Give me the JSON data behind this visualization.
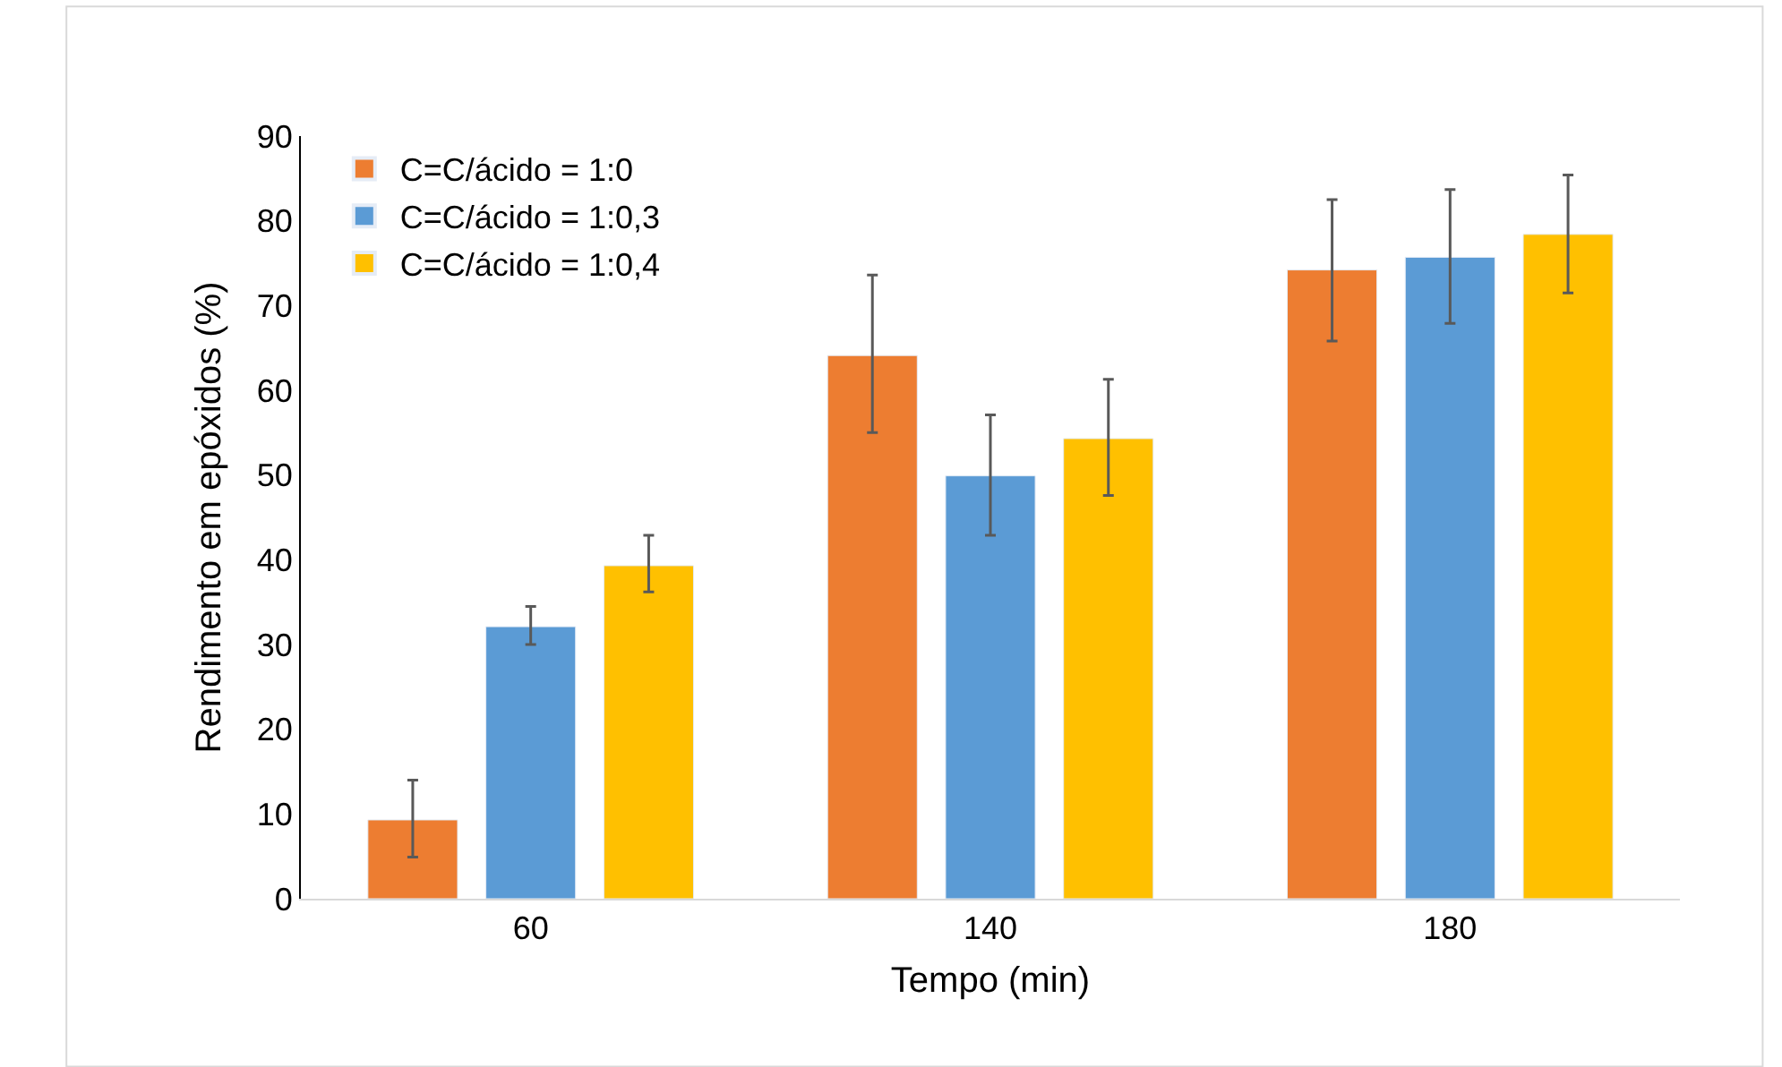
{
  "chart_data": {
    "type": "bar",
    "xlabel": "Tempo (min)",
    "ylabel": "Rendimento em epóxidos (%)",
    "categories": [
      "60",
      "140",
      "180"
    ],
    "series": [
      {
        "name": "C=C/ácido = 1:0",
        "color": "#ed7d31",
        "values": [
          9.3,
          64.1,
          74.2
        ],
        "errors": [
          [
            4.9,
            14.0
          ],
          [
            55.0,
            73.6
          ],
          [
            65.8,
            82.5
          ]
        ]
      },
      {
        "name": "C=C/ácido = 1:0,3",
        "color": "#5b9bd5",
        "values": [
          32.1,
          49.9,
          75.7
        ],
        "errors": [
          [
            30.0,
            34.5
          ],
          [
            42.9,
            57.1
          ],
          [
            67.9,
            83.7
          ]
        ]
      },
      {
        "name": "C=C/ácido = 1:0,4",
        "color": "#ffc000",
        "values": [
          39.3,
          54.3,
          78.4
        ],
        "errors": [
          [
            36.2,
            42.9
          ],
          [
            47.6,
            61.3
          ],
          [
            71.5,
            85.4
          ]
        ]
      }
    ],
    "ylim": [
      0,
      90
    ],
    "yticks": [
      0,
      10,
      20,
      30,
      40,
      50,
      60,
      70,
      80,
      90
    ],
    "grid": false,
    "legend": "top left"
  }
}
